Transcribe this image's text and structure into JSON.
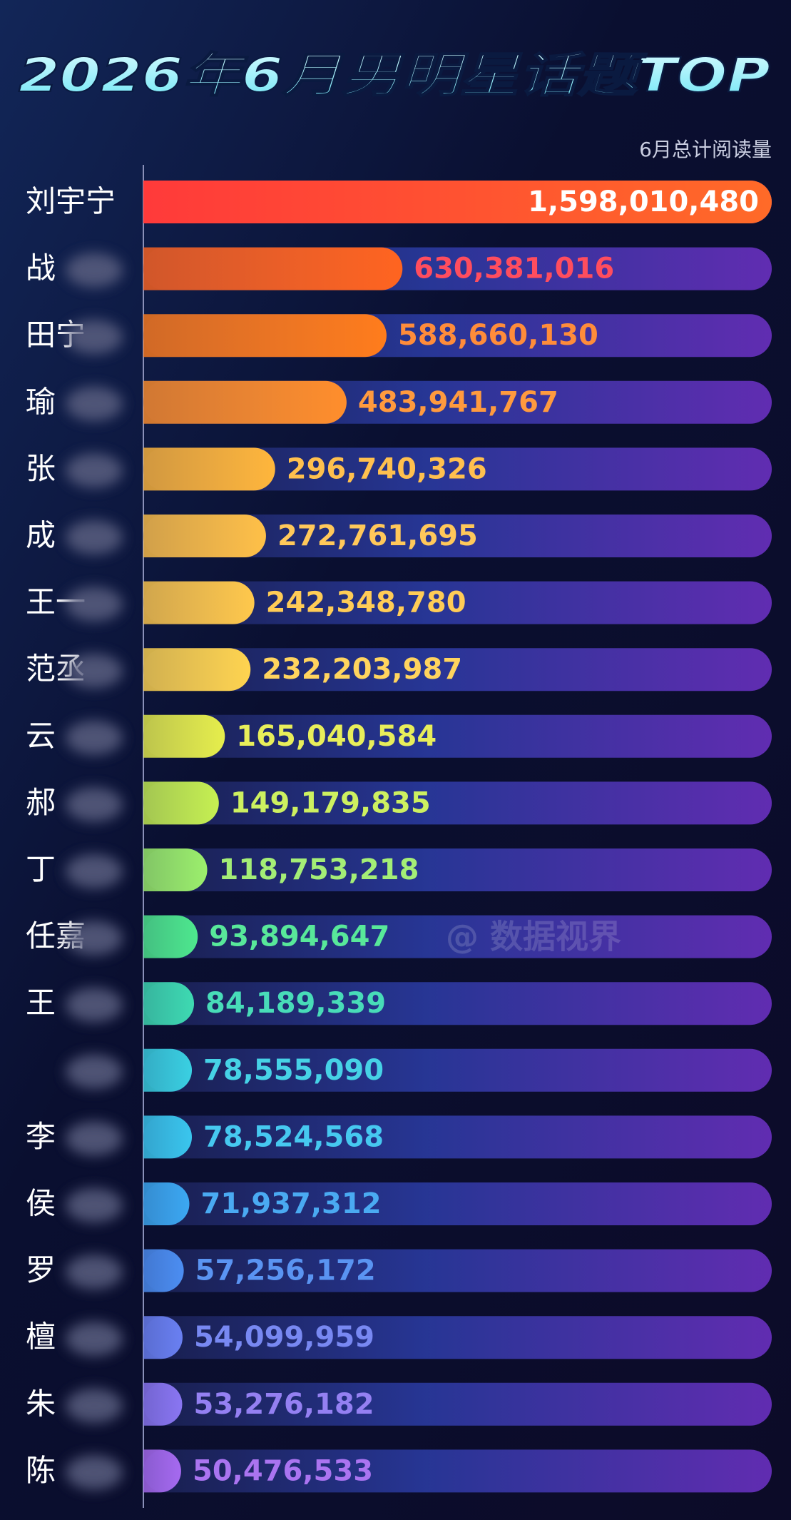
{
  "chart_data": {
    "type": "bar",
    "orientation": "horizontal",
    "title": "2026年6月男明星话题TOP",
    "subtitle": "6月总计阅读量",
    "watermark": "@ 数据视界",
    "categories": [
      "刘宇宁",
      "战",
      "田宁",
      "瑜",
      "张",
      "成",
      "王一",
      "范丞",
      "云",
      "郝",
      "丁",
      "任嘉",
      "王",
      null,
      "李",
      "侯",
      "罗",
      "檀",
      "朱",
      "陈"
    ],
    "values": [
      1598010480,
      630381016,
      588660130,
      483941767,
      296740326,
      272761695,
      242348780,
      232203987,
      165040584,
      149179835,
      118753218,
      93894647,
      84189339,
      78555090,
      78524568,
      71937312,
      57256172,
      54099959,
      53276182,
      50476533
    ],
    "value_labels": [
      "1,598,010,480",
      "630,381,016",
      "588,660,130",
      "483,941,767",
      "296,740,326",
      "272,761,695",
      "242,348,780",
      "232,203,987",
      "165,040,584",
      "149,179,835",
      "118,753,218",
      "93,894,647",
      "84,189,339",
      "78,555,090",
      "78,524,568",
      "71,937,312",
      "57,256,172",
      "54,099,959",
      "53,276,182",
      "50,476,533"
    ],
    "colors": [
      "#ff6a28",
      "#ff6420",
      "#ff7c1c",
      "#ff8e2c",
      "#ffb63c",
      "#ffc048",
      "#ffc84c",
      "#ffd450",
      "#e6ee4c",
      "#c6f052",
      "#9cef6c",
      "#4ee88e",
      "#3edab2",
      "#3ad0e2",
      "#3ac6ee",
      "#3ca8f2",
      "#4c8ef2",
      "#6a80f2",
      "#8a76f2",
      "#a66af0"
    ],
    "value_label_colors": [
      "#ffffff",
      "#ff4d5e",
      "#ff8c3a",
      "#ff9a3e",
      "#ffc04e",
      "#ffc85a",
      "#ffcc56",
      "#ffd45e",
      "#e8ee5a",
      "#cdf060",
      "#a4ee76",
      "#58e89a",
      "#48dcb8",
      "#46d2e6",
      "#46c8f0",
      "#4aaaf2",
      "#5a94f2",
      "#7888f2",
      "#9480f2",
      "#aa74f0"
    ]
  }
}
